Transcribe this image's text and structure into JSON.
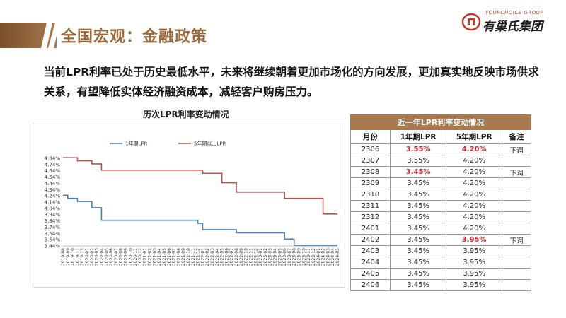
{
  "header": {
    "title": "全国宏观：金融政策"
  },
  "logo": {
    "en": "YOURCHOICE GROUP",
    "cn": "有巢氏集团"
  },
  "lead": {
    "text": "当前LPR利率已处于历史最低水平，未来将继续朝着更加市场化的方向发展，更加真实地反映市场供求关系，有望降低实体经济融资成本，减轻客户购房压力。"
  },
  "chart": {
    "title": "历次LPR利率变动情况"
  },
  "chart_data": {
    "type": "line",
    "title": "历次LPR利率变动情况",
    "ylim": [
      3.44,
      4.84
    ],
    "yticks": [
      "4.84%",
      "4.74%",
      "4.64%",
      "4.54%",
      "4.44%",
      "4.34%",
      "4.24%",
      "4.14%",
      "4.04%",
      "3.94%",
      "3.84%",
      "3.74%",
      "3.64%",
      "3.54%",
      "3.44%"
    ],
    "x": [
      "2019-08",
      "2019-09",
      "2019-10",
      "2019-11",
      "2019-12",
      "2020-01",
      "2020-02",
      "2020-03",
      "2020-04",
      "2020-05",
      "2020-06",
      "2020-07",
      "2020-08",
      "2020-09",
      "2020-10",
      "2020-11",
      "2020-12",
      "2021-01",
      "2021-02",
      "2021-03",
      "2021-04",
      "2021-05",
      "2021-06",
      "2021-07",
      "2021-08",
      "2021-09",
      "2021-10",
      "2021-11",
      "2021-12",
      "2022-01",
      "2022-02",
      "2022-03",
      "2022-04",
      "2022-05",
      "2022-06",
      "2022-07",
      "2022-08",
      "2022-09",
      "2022-10",
      "2022-11",
      "2022-12",
      "2023-01",
      "2023-02",
      "2023-03",
      "2023-04",
      "2023-05",
      "2023-06",
      "2023-07",
      "2023-08",
      "2023-09",
      "2023-10",
      "2023-11",
      "2023-12",
      "2024-01",
      "2024-02",
      "2024-03",
      "2024-04",
      "2024-05"
    ],
    "series": [
      {
        "name": "1年期LPR",
        "color": "#4a7ebb",
        "values": [
          4.25,
          4.2,
          4.2,
          4.15,
          4.15,
          4.15,
          4.05,
          4.05,
          3.85,
          3.85,
          3.85,
          3.85,
          3.85,
          3.85,
          3.85,
          3.85,
          3.85,
          3.85,
          3.85,
          3.85,
          3.85,
          3.85,
          3.85,
          3.85,
          3.85,
          3.85,
          3.85,
          3.85,
          3.8,
          3.7,
          3.7,
          3.7,
          3.7,
          3.7,
          3.7,
          3.7,
          3.65,
          3.65,
          3.65,
          3.65,
          3.65,
          3.65,
          3.65,
          3.65,
          3.65,
          3.65,
          3.55,
          3.55,
          3.45,
          3.45,
          3.45,
          3.45,
          3.45,
          3.45,
          3.45,
          3.45,
          3.45,
          3.45
        ]
      },
      {
        "name": "5年期以上LPR",
        "color": "#b85450",
        "values": [
          4.85,
          4.85,
          4.85,
          4.8,
          4.8,
          4.8,
          4.75,
          4.75,
          4.65,
          4.65,
          4.65,
          4.65,
          4.65,
          4.65,
          4.65,
          4.65,
          4.65,
          4.65,
          4.65,
          4.65,
          4.65,
          4.65,
          4.65,
          4.65,
          4.65,
          4.65,
          4.65,
          4.65,
          4.65,
          4.6,
          4.6,
          4.6,
          4.6,
          4.45,
          4.45,
          4.45,
          4.3,
          4.3,
          4.3,
          4.3,
          4.3,
          4.3,
          4.3,
          4.3,
          4.3,
          4.3,
          4.2,
          4.2,
          4.2,
          4.2,
          4.2,
          4.2,
          4.2,
          4.2,
          3.95,
          3.95,
          3.95,
          3.95
        ]
      }
    ]
  },
  "table": {
    "caption": "近一年LPR利率变动情况",
    "headers": [
      "月份",
      "1年期LPR",
      "5年期LPR",
      "备注"
    ],
    "rows": [
      {
        "m": "2306",
        "y1": "3.55%",
        "y5": "4.20%",
        "note": "下调",
        "h1": true,
        "h5": true
      },
      {
        "m": "2307",
        "y1": "3.55%",
        "y5": "4.20%",
        "note": "",
        "h1": false,
        "h5": false
      },
      {
        "m": "2308",
        "y1": "3.45%",
        "y5": "4.20%",
        "note": "下调",
        "h1": true,
        "h5": false
      },
      {
        "m": "2309",
        "y1": "3.45%",
        "y5": "4.20%",
        "note": "",
        "h1": false,
        "h5": false
      },
      {
        "m": "2310",
        "y1": "3.45%",
        "y5": "4.20%",
        "note": "",
        "h1": false,
        "h5": false
      },
      {
        "m": "2311",
        "y1": "3.45%",
        "y5": "4.20%",
        "note": "",
        "h1": false,
        "h5": false
      },
      {
        "m": "2312",
        "y1": "3.45%",
        "y5": "4.20%",
        "note": "",
        "h1": false,
        "h5": false
      },
      {
        "m": "2401",
        "y1": "3.45%",
        "y5": "4.20%",
        "note": "",
        "h1": false,
        "h5": false
      },
      {
        "m": "2402",
        "y1": "3.45%",
        "y5": "3.95%",
        "note": "下调",
        "h1": false,
        "h5": true
      },
      {
        "m": "2403",
        "y1": "3.45%",
        "y5": "3.95%",
        "note": "",
        "h1": false,
        "h5": false
      },
      {
        "m": "2404",
        "y1": "3.45%",
        "y5": "3.95%",
        "note": "",
        "h1": false,
        "h5": false
      },
      {
        "m": "2405",
        "y1": "3.45%",
        "y5": "3.95%",
        "note": "",
        "h1": false,
        "h5": false
      },
      {
        "m": "2406",
        "y1": "3.45%",
        "y5": "3.95%",
        "note": "",
        "h1": false,
        "h5": false
      }
    ]
  }
}
